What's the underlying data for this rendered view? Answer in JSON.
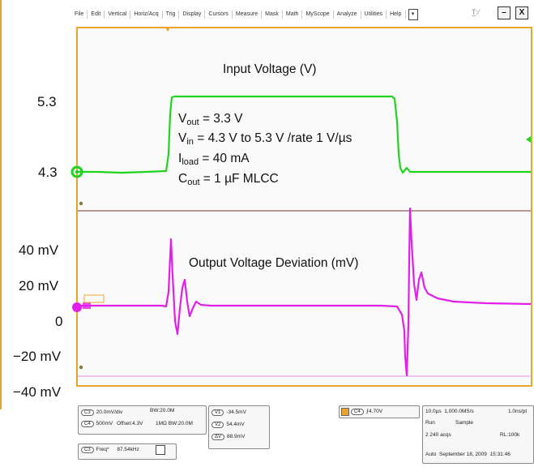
{
  "menu": {
    "items": [
      "File",
      "Edit",
      "Vertical",
      "Horiz/Acq",
      "Trig",
      "Display",
      "Cursors",
      "Measure",
      "Mask",
      "Math",
      "MyScope",
      "Analyze",
      "Utilities",
      "Help"
    ],
    "dropdown_glyph": "▾",
    "status_glyph": "T̲:⁄",
    "minimize": "–",
    "close": "X"
  },
  "scale_labels": {
    "v53": "5.3",
    "v43": "4.3",
    "p40": "40 mV",
    "p20": "20 mV",
    "zero": "0",
    "m20": "−20 mV",
    "m40": "−40 mV"
  },
  "annotations": {
    "input_title": "Input Voltage (V)",
    "output_title": "Output Voltage Deviation (mV)",
    "vout": {
      "sym": "V",
      "sub": "out",
      "rest": " = 3.3 V"
    },
    "vin": {
      "sym": "V",
      "sub": "in",
      "rest": " = 4.3 V to 5.3 V /rate 1 V/µs"
    },
    "iload": {
      "sym": "I",
      "sub": "load",
      "rest": " = 40 mA"
    },
    "cout": {
      "sym": "C",
      "sub": "out",
      "rest": " = 1 µF MLCC"
    }
  },
  "bottom_panel": {
    "ch3_tag": "C3",
    "ch3_scale": "20.0mV/div",
    "ch3_bw": "B",
    "ch3_bw_value": "W:20.0M",
    "ch4_tag": "C4",
    "ch4_scale": "500mV",
    "ch4_offset": "Offset:4.3V",
    "ch4_imp": "1MΩ",
    "ch4_bw_value": "W:20.0M",
    "v1_tag": "V1",
    "v1_val": "-34.5mV",
    "v2_tag": "V2",
    "v2_val": "54.4mV",
    "dv_tag": "ΔV",
    "dv_val": "88.9mV",
    "trig_tag": "C4",
    "trig_level": "4.70V",
    "freq_tag": "C3",
    "freq_label": "Freq*",
    "freq_val": "87.54kHz",
    "acq_time": "10.0µs",
    "acq_rate": "1,000.0MS/s",
    "acq_res": "1.0ns/pt",
    "run": "Run",
    "sample": "Sample",
    "acqs": "2 240 acqs",
    "rl": "RL:100k",
    "auto": "Auto",
    "date": "September 18, 2009",
    "time": "15:31:46",
    "ch_marker": "8"
  },
  "colors": {
    "input_trace": "#1fd321",
    "output_trace": "#e21fe8",
    "screen_border": "#e9a52e",
    "grid_line": "#9a7a7a",
    "cursor_line": "#e98be9"
  }
}
